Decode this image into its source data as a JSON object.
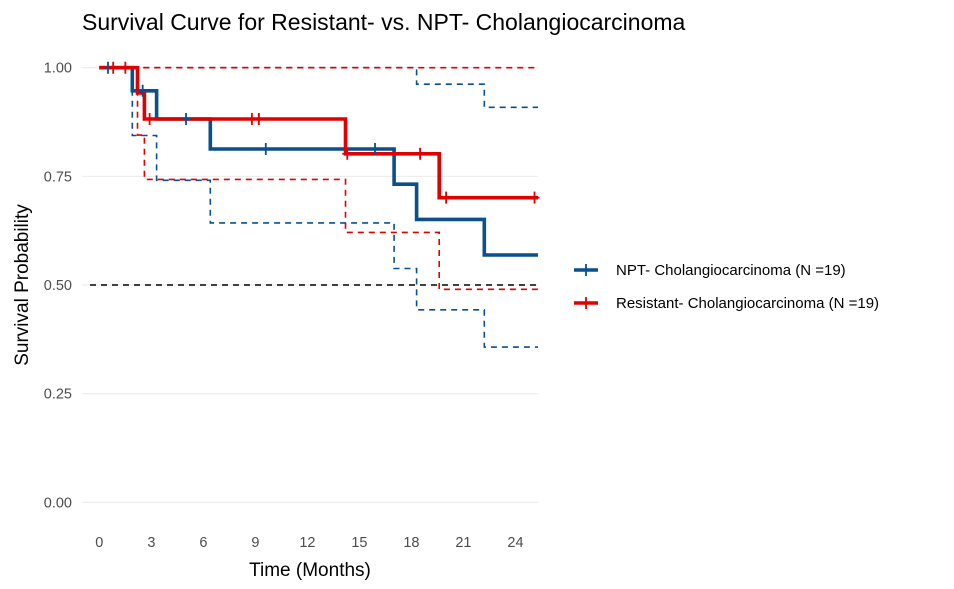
{
  "chart_data": {
    "type": "line",
    "title": "Survival Curve for Resistant- vs. NPT- Cholangiocarcinoma",
    "xlabel": "Time (Months)",
    "ylabel": "Survival Probability",
    "xlim": [
      -1,
      25.3
    ],
    "ylim": [
      -0.05,
      1.05
    ],
    "x_ticks": [
      0,
      3,
      6,
      9,
      12,
      15,
      18,
      21,
      24
    ],
    "y_ticks": [
      0.0,
      0.25,
      0.5,
      0.75,
      1.0
    ],
    "x_tick_labels": [
      "0",
      "3",
      "6",
      "9",
      "12",
      "15",
      "18",
      "21",
      "24"
    ],
    "y_tick_labels": [
      "0.00",
      "0.25",
      "0.50",
      "0.75",
      "1.00"
    ],
    "grid": "horizontal",
    "legend_position": "right",
    "reference_line": {
      "y": 0.5,
      "style": "dashed",
      "color": "#000000"
    },
    "series": [
      {
        "name": "NPT- Cholangiocarcinoma (N =19)",
        "color": "#0b4f8c",
        "steps": [
          [
            0,
            1.0
          ],
          [
            1.9,
            0.947
          ],
          [
            3.3,
            0.882
          ],
          [
            6.4,
            0.813
          ],
          [
            17.0,
            0.732
          ],
          [
            18.3,
            0.651
          ],
          [
            22.2,
            0.569
          ],
          [
            25.3,
            0.569
          ]
        ],
        "censored": [
          [
            0.5,
            1.0
          ],
          [
            2.5,
            0.947
          ],
          [
            5.0,
            0.882
          ],
          [
            9.6,
            0.813
          ],
          [
            15.9,
            0.813
          ]
        ],
        "ci_upper": [
          [
            0,
            1.0
          ],
          [
            18.3,
            1.0
          ],
          [
            18.3,
            0.962
          ],
          [
            22.2,
            0.962
          ],
          [
            22.2,
            0.909
          ],
          [
            25.3,
            0.909
          ]
        ],
        "ci_lower": [
          [
            1.9,
            1.0
          ],
          [
            1.9,
            0.844
          ],
          [
            3.3,
            0.844
          ],
          [
            3.3,
            0.741
          ],
          [
            6.4,
            0.741
          ],
          [
            6.4,
            0.643
          ],
          [
            17.0,
            0.643
          ],
          [
            17.0,
            0.538
          ],
          [
            18.3,
            0.538
          ],
          [
            18.3,
            0.443
          ],
          [
            22.2,
            0.443
          ],
          [
            22.2,
            0.357
          ],
          [
            25.3,
            0.357
          ]
        ]
      },
      {
        "name": "Resistant- Cholangiocarcinoma (N =19)",
        "color": "#e00000",
        "steps": [
          [
            0,
            1.0
          ],
          [
            2.2,
            0.942
          ],
          [
            2.6,
            0.882
          ],
          [
            14.2,
            0.802
          ],
          [
            19.6,
            0.701
          ],
          [
            25.3,
            0.701
          ]
        ],
        "censored": [
          [
            0.8,
            1.0
          ],
          [
            1.5,
            1.0
          ],
          [
            2.9,
            0.882
          ],
          [
            8.8,
            0.882
          ],
          [
            9.2,
            0.882
          ],
          [
            14.3,
            0.802
          ],
          [
            18.5,
            0.802
          ],
          [
            20.0,
            0.701
          ],
          [
            25.1,
            0.701
          ]
        ],
        "ci_upper": [
          [
            0,
            1.0
          ],
          [
            25.3,
            1.0
          ]
        ],
        "ci_lower": [
          [
            2.2,
            1.0
          ],
          [
            2.2,
            0.845
          ],
          [
            2.6,
            0.845
          ],
          [
            2.6,
            0.743
          ],
          [
            14.2,
            0.743
          ],
          [
            14.2,
            0.621
          ],
          [
            19.6,
            0.621
          ],
          [
            19.6,
            0.49
          ],
          [
            25.3,
            0.49
          ]
        ]
      }
    ]
  }
}
